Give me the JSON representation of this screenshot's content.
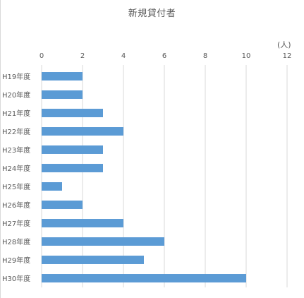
{
  "chart_data": {
    "type": "bar",
    "orientation": "horizontal",
    "title": "新規貸付者",
    "unit": "(人)",
    "categories": [
      "H19年度",
      "H20年度",
      "H21年度",
      "H22年度",
      "H23年度",
      "H24年度",
      "H25年度",
      "H26年度",
      "H27年度",
      "H28年度",
      "H29年度",
      "H30年度"
    ],
    "values": [
      2,
      2,
      3,
      4,
      3,
      3,
      1,
      2,
      4,
      6,
      5,
      10
    ],
    "x_ticks": [
      "0",
      "2",
      "4",
      "6",
      "8",
      "10",
      "12"
    ],
    "xlim": [
      0,
      12
    ],
    "x_axis_position": "top",
    "grid": true,
    "legend": "none",
    "bar_color": "#5b9bd5",
    "grid_color": "#d9d9d9",
    "text_color": "#595959"
  }
}
